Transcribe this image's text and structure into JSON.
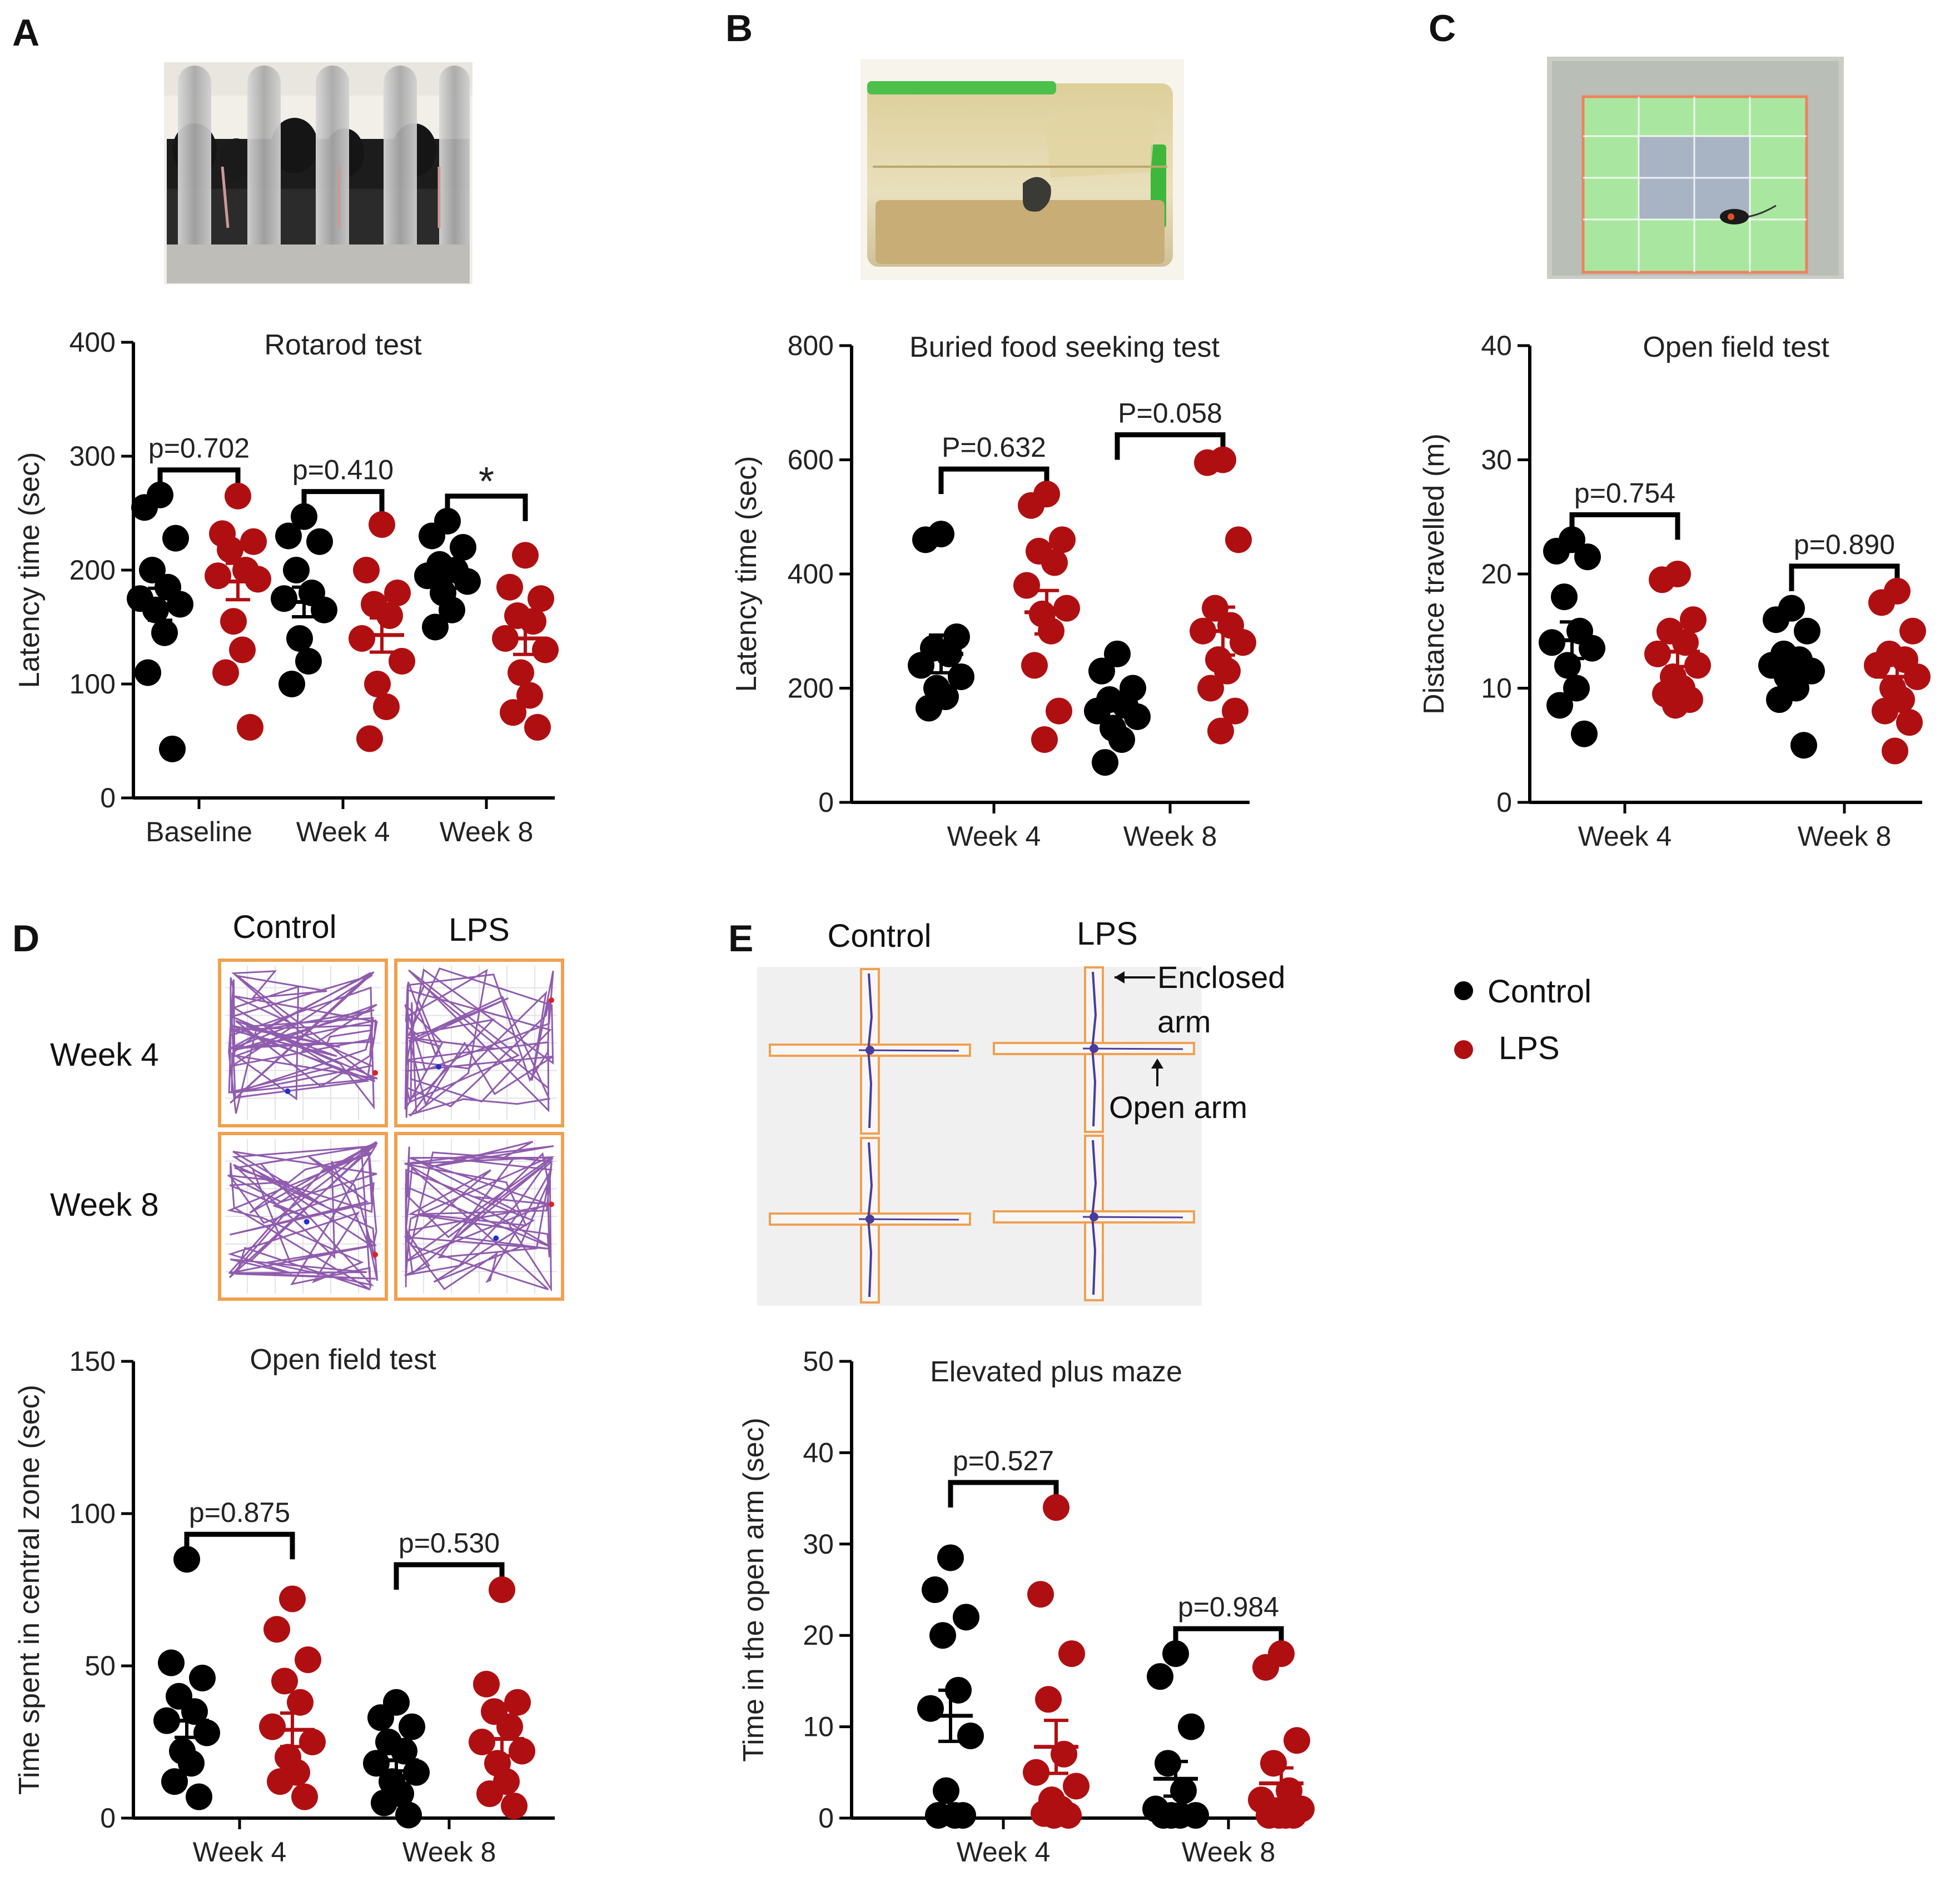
{
  "panels": {
    "A": {
      "letter": "A"
    },
    "B": {
      "letter": "B"
    },
    "C": {
      "letter": "C"
    },
    "D": {
      "letter": "D"
    },
    "E": {
      "letter": "E"
    }
  },
  "photos": {
    "A": "rotarod-apparatus-photo",
    "B": "buried-food-cage-photo",
    "C": "open-field-arena-photo"
  },
  "track_grid_D": {
    "col_labels": [
      "Control",
      "LPS"
    ],
    "row_labels": [
      "Week 4",
      "Week 8"
    ]
  },
  "maze_E": {
    "col_labels": [
      "Control",
      "LPS"
    ],
    "enclosed_label_1": "Enclosed",
    "enclosed_label_2": "arm",
    "open_label": "Open arm"
  },
  "legend": {
    "items": [
      {
        "label": "Control",
        "color": "#000000"
      },
      {
        "label": "LPS",
        "color": "#b00f12"
      }
    ]
  },
  "colors": {
    "control": "#000000",
    "lps": "#b00f12",
    "track": "#7d3fa0",
    "arena_border": "#f0a050"
  },
  "chart_data": [
    {
      "id": "A",
      "type": "scatter",
      "title": "Rotarod test",
      "ylabel": "Latency time (sec)",
      "ylim": [
        0,
        400
      ],
      "yticks": [
        "0",
        "100",
        "200",
        "300",
        "400"
      ],
      "categories": [
        "Baseline",
        "Week 4",
        "Week 8"
      ],
      "pvalues": [
        "p=0.702",
        "p=0.410",
        "*"
      ],
      "series": [
        {
          "name": "Control",
          "means": [
            170,
            172,
            193
          ],
          "sems": [
            14,
            13,
            9
          ],
          "points": [
            [
              266,
              255,
              228,
              200,
              185,
              175,
              170,
              165,
              145,
              110,
              43
            ],
            [
              247,
              230,
              225,
              200,
              180,
              175,
              165,
              140,
              120,
              100
            ],
            [
              243,
              230,
              220,
              205,
              200,
              195,
              190,
              180,
              165,
              150
            ]
          ]
        },
        {
          "name": "LPS",
          "means": [
            190,
            143,
            140
          ],
          "sems": [
            16,
            15,
            14
          ],
          "points": [
            [
              265,
              232,
              225,
              218,
              200,
              195,
              192,
              155,
              130,
              110,
              62
            ],
            [
              240,
              200,
              180,
              170,
              160,
              140,
              120,
              100,
              80,
              52
            ],
            [
              213,
              185,
              175,
              160,
              155,
              140,
              130,
              110,
              90,
              75,
              62
            ]
          ]
        }
      ]
    },
    {
      "id": "B",
      "type": "scatter",
      "title": "Buried food seeking test",
      "ylabel": "Latency time (sec)",
      "ylim": [
        0,
        800
      ],
      "yticks": [
        "0",
        "200",
        "400",
        "600",
        "800"
      ],
      "categories": [
        "Week 4",
        "Week 8"
      ],
      "pvalues": [
        "P=0.632",
        "P=0.058"
      ],
      "series": [
        {
          "name": "Control",
          "means": [
            260,
            168
          ],
          "sems": [
            33,
            18
          ],
          "points": [
            [
              470,
              460,
              290,
              270,
              260,
              240,
              220,
              200,
              185,
              165
            ],
            [
              260,
              230,
              200,
              180,
              170,
              160,
              150,
              130,
              110,
              70
            ]
          ]
        },
        {
          "name": "LPS",
          "means": [
            333,
            300
          ],
          "sems": [
            38,
            42
          ],
          "points": [
            [
              540,
              520,
              460,
              440,
              420,
              380,
              340,
              330,
              300,
              240,
              160,
              110
            ],
            [
              600,
              595,
              460,
              340,
              310,
              300,
              280,
              250,
              230,
              200,
              160,
              125
            ]
          ]
        }
      ]
    },
    {
      "id": "C",
      "type": "scatter",
      "title": "Open field test",
      "ylabel": "Distance travelled (m)",
      "ylim": [
        0,
        40
      ],
      "yticks": [
        "0",
        "10",
        "20",
        "30",
        "40"
      ],
      "categories": [
        "Week 4",
        "Week 8"
      ],
      "pvalues": [
        "p=0.754",
        "p=0.890"
      ],
      "series": [
        {
          "name": "Control",
          "means": [
            14.2,
            11.6
          ],
          "sems": [
            1.6,
            1.0
          ],
          "points": [
            [
              23,
              22,
              21.5,
              18,
              15,
              14,
              13.5,
              12,
              10,
              8.5,
              6
            ],
            [
              17,
              16,
              15,
              13,
              12.5,
              12,
              11.5,
              11,
              10,
              9,
              5
            ]
          ]
        },
        {
          "name": "LPS",
          "means": [
            13.2,
            11.0
          ],
          "sems": [
            1.3,
            1.2
          ],
          "points": [
            [
              20,
              19.5,
              16,
              15,
              14,
              13,
              12,
              11,
              10,
              9.5,
              9,
              8.5
            ],
            [
              18.5,
              17.5,
              15,
              13,
              12.5,
              12,
              11,
              10,
              9,
              8,
              7,
              4.5
            ]
          ]
        }
      ]
    },
    {
      "id": "D",
      "type": "scatter",
      "title": "Open field test",
      "ylabel": "Time spent in central zone (sec)",
      "ylim": [
        0,
        150
      ],
      "yticks": [
        "0",
        "50",
        "100",
        "150"
      ],
      "categories": [
        "Week 4",
        "Week 8"
      ],
      "pvalues": [
        "p=0.875",
        "p=0.530"
      ],
      "series": [
        {
          "name": "Control",
          "means": [
            32,
            19
          ],
          "sems": [
            5.5,
            3.5
          ],
          "points": [
            [
              85,
              51,
              46,
              40,
              35,
              32,
              28,
              22,
              18,
              12,
              7
            ],
            [
              38,
              33,
              30,
              25,
              22,
              18,
              15,
              12,
              8,
              5,
              1
            ]
          ]
        },
        {
          "name": "LPS",
          "means": [
            29,
            26
          ],
          "sems": [
            5.5,
            5.5
          ],
          "points": [
            [
              72,
              62,
              52,
              45,
              38,
              30,
              25,
              20,
              15,
              12,
              7
            ],
            [
              75,
              44,
              38,
              35,
              30,
              25,
              22,
              18,
              12,
              8,
              4
            ]
          ]
        }
      ]
    },
    {
      "id": "E",
      "type": "scatter",
      "title": "Elevated plus maze",
      "ylabel": "Time in the open arm (sec)",
      "ylim": [
        0,
        50
      ],
      "yticks": [
        "0",
        "10",
        "20",
        "30",
        "40",
        "50"
      ],
      "categories": [
        "Week 4",
        "Week 8"
      ],
      "pvalues": [
        "p=0.527",
        "p=0.984"
      ],
      "series": [
        {
          "name": "Control",
          "means": [
            11.2,
            4.3
          ],
          "sems": [
            2.8,
            1.9
          ],
          "points": [
            [
              28.5,
              25,
              22,
              20,
              14,
              12,
              9,
              3,
              0.3,
              0.3,
              0.3
            ],
            [
              18,
              15.5,
              10,
              6,
              3,
              1,
              0.3,
              0.3,
              0.3,
              0.3
            ]
          ]
        },
        {
          "name": "LPS",
          "means": [
            7.8,
            3.8
          ],
          "sems": [
            2.9,
            1.7
          ],
          "points": [
            [
              34,
              24.5,
              18,
              13,
              7,
              5,
              3.5,
              2,
              1,
              0.5,
              0.3,
              0.3
            ],
            [
              18,
              16.5,
              8.5,
              6,
              3,
              2,
              1,
              0.5,
              0.3,
              0.3,
              0.3,
              0.3
            ]
          ]
        }
      ]
    }
  ]
}
